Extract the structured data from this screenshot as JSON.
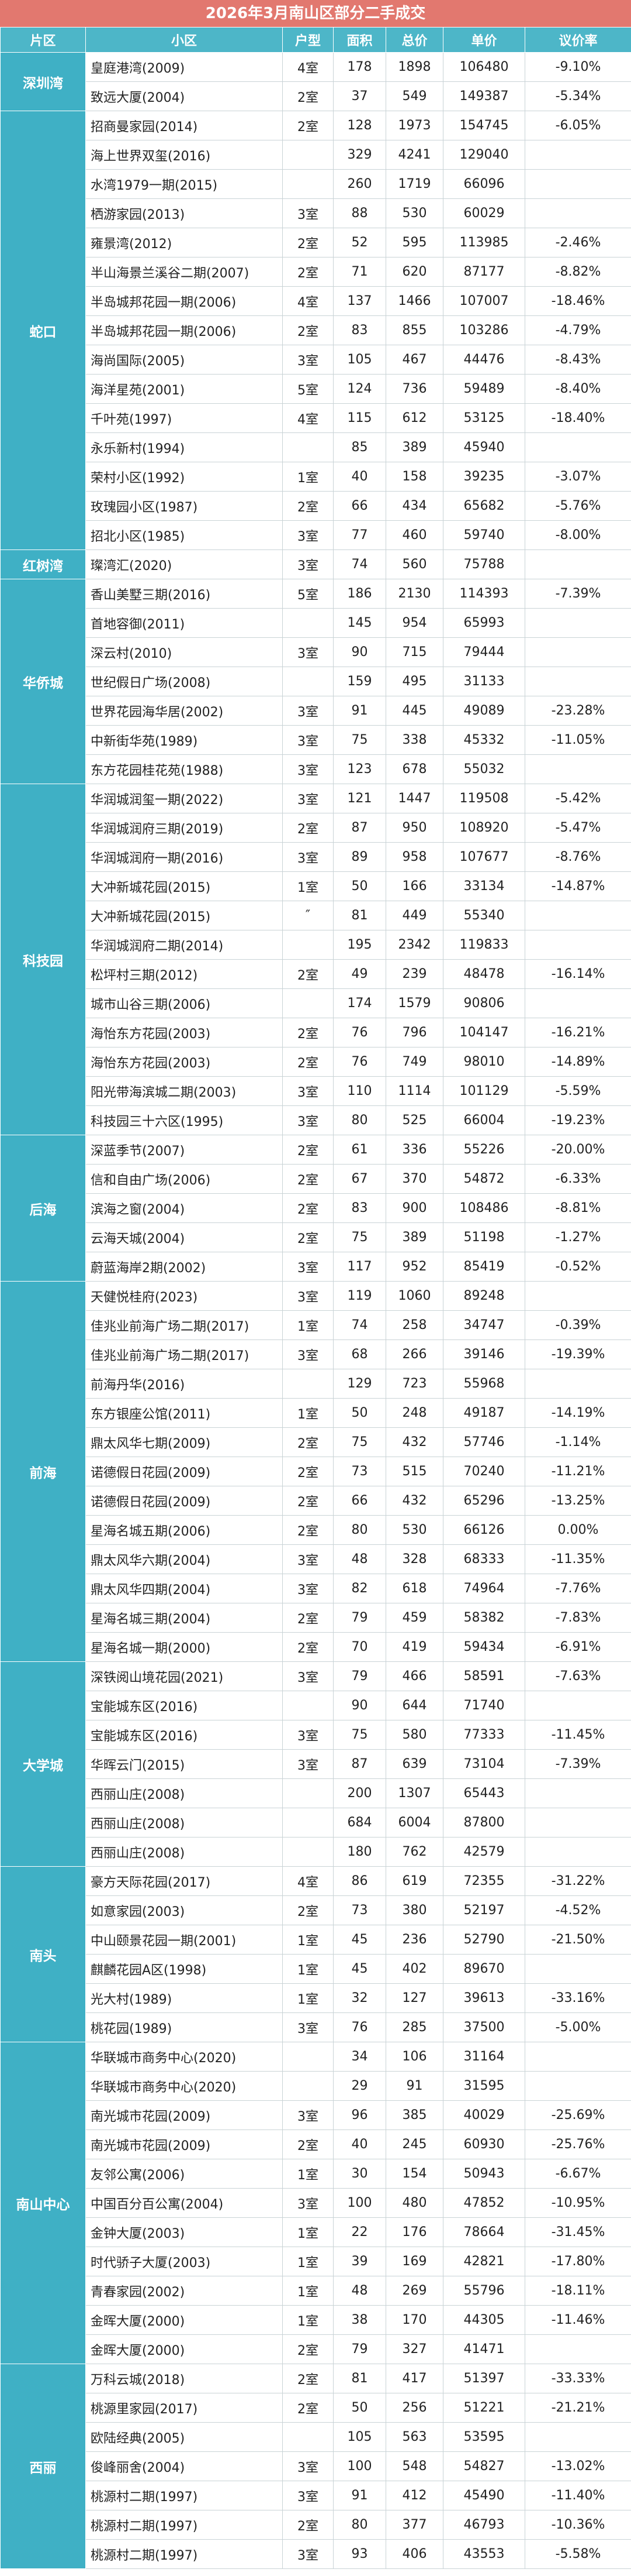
{
  "title": "2026年3月南山区部分二手成交",
  "header": [
    "片区",
    "小区",
    "户型",
    "面积",
    "总价",
    "单价",
    "议价率"
  ],
  "groups": [
    {
      "district": "深圳湾",
      "rows": [
        [
          "皇庭港湾(2009)",
          "4室",
          178,
          1898,
          106480,
          "-9.10%"
        ],
        [
          "致远大厦(2004)",
          "2室",
          37,
          549,
          149387,
          "-5.34%"
        ]
      ]
    },
    {
      "district": "蛇口",
      "rows": [
        [
          "招商曼家园(2014)",
          "2室",
          128,
          1973,
          154745,
          "-6.05%"
        ],
        [
          "海上世界双玺(2016)",
          null,
          329,
          4241,
          129040,
          null
        ],
        [
          "水湾1979一期(2015)",
          null,
          260,
          1719,
          66096,
          null
        ],
        [
          "栖游家园(2013)",
          "3室",
          88,
          530,
          60029,
          null
        ],
        [
          "雍景湾(2012)",
          "2室",
          52,
          595,
          113985,
          "-2.46%"
        ],
        [
          "半山海景兰溪谷二期(2007)",
          "2室",
          71,
          620,
          87177,
          "-8.82%"
        ],
        [
          "半岛城邦花园一期(2006)",
          "4室",
          137,
          1466,
          107007,
          "-18.46%"
        ],
        [
          "半岛城邦花园一期(2006)",
          "2室",
          83,
          855,
          103286,
          "-4.79%"
        ],
        [
          "海尚国际(2005)",
          "3室",
          105,
          467,
          44476,
          "-8.43%"
        ],
        [
          "海洋星苑(2001)",
          "5室",
          124,
          736,
          59489,
          "-8.40%"
        ],
        [
          "千叶苑(1997)",
          "4室",
          115,
          612,
          53125,
          "-18.40%"
        ],
        [
          "永乐新村(1994)",
          null,
          85,
          389,
          45940,
          null
        ],
        [
          "荣村小区(1992)",
          "1室",
          40,
          158,
          39235,
          "-3.07%"
        ],
        [
          "玫瑰园小区(1987)",
          "2室",
          66,
          434,
          65682,
          "-5.76%"
        ],
        [
          "招北小区(1985)",
          "3室",
          77,
          460,
          59740,
          "-8.00%"
        ]
      ]
    },
    {
      "district": "红树湾",
      "rows": [
        [
          "璨湾汇(2020)",
          "3室",
          74,
          560,
          75788,
          null
        ]
      ]
    },
    {
      "district": "华侨城",
      "rows": [
        [
          "香山美墅三期(2016)",
          "5室",
          186,
          2130,
          114393,
          "-7.39%"
        ],
        [
          "首地容御(2011)",
          null,
          145,
          954,
          65993,
          null
        ],
        [
          "深云村(2010)",
          "3室",
          90,
          715,
          79444,
          null
        ],
        [
          "世纪假日广场(2008)",
          null,
          159,
          495,
          31133,
          null
        ],
        [
          "世界花园海华居(2002)",
          "3室",
          91,
          445,
          49089,
          "-23.28%"
        ],
        [
          "中新街华苑(1989)",
          "3室",
          75,
          338,
          45332,
          "-11.05%"
        ],
        [
          "东方花园桂花苑(1988)",
          "3室",
          123,
          678,
          55032,
          null
        ]
      ]
    },
    {
      "district": "科技园",
      "rows": [
        [
          "华润城润玺一期(2022)",
          "3室",
          121,
          1447,
          119508,
          "-5.42%"
        ],
        [
          "华润城润府三期(2019)",
          "2室",
          87,
          950,
          108920,
          "-5.47%"
        ],
        [
          "华润城润府一期(2016)",
          "3室",
          89,
          958,
          107677,
          "-8.76%"
        ],
        [
          "大冲新城花园(2015)",
          "1室",
          50,
          166,
          33134,
          "-14.87%"
        ],
        [
          "大冲新城花园(2015)",
          "″",
          81,
          449,
          55340,
          null
        ],
        [
          "华润城润府二期(2014)",
          null,
          195,
          2342,
          119833,
          null
        ],
        [
          "松坪村三期(2012)",
          "2室",
          49,
          239,
          48478,
          "-16.14%"
        ],
        [
          "城市山谷三期(2006)",
          null,
          174,
          1579,
          90806,
          null
        ],
        [
          "海怡东方花园(2003)",
          "2室",
          76,
          796,
          104147,
          "-16.21%"
        ],
        [
          "海怡东方花园(2003)",
          "2室",
          76,
          749,
          98010,
          "-14.89%"
        ],
        [
          "阳光带海滨城二期(2003)",
          "3室",
          110,
          1114,
          101129,
          "-5.59%"
        ],
        [
          "科技园三十六区(1995)",
          "3室",
          80,
          525,
          66004,
          "-19.23%"
        ]
      ]
    },
    {
      "district": "后海",
      "rows": [
        [
          "深蓝季节(2007)",
          "2室",
          61,
          336,
          55226,
          "-20.00%"
        ],
        [
          "信和自由广场(2006)",
          "2室",
          67,
          370,
          54872,
          "-6.33%"
        ],
        [
          "滨海之窗(2004)",
          "2室",
          83,
          900,
          108486,
          "-8.81%"
        ],
        [
          "云海天城(2004)",
          "2室",
          75,
          389,
          51198,
          "-1.27%"
        ],
        [
          "蔚蓝海岸2期(2002)",
          "3室",
          117,
          952,
          85419,
          "-0.52%"
        ]
      ]
    },
    {
      "district": "前海",
      "rows": [
        [
          "天健悦桂府(2023)",
          "3室",
          119,
          1060,
          89248,
          null
        ],
        [
          "佳兆业前海广场二期(2017)",
          "1室",
          74,
          258,
          34747,
          "-0.39%"
        ],
        [
          "佳兆业前海广场二期(2017)",
          "3室",
          68,
          266,
          39146,
          "-19.39%"
        ],
        [
          "前海丹华(2016)",
          null,
          129,
          723,
          55968,
          null
        ],
        [
          "东方银座公馆(2011)",
          "1室",
          50,
          248,
          49187,
          "-14.19%"
        ],
        [
          "鼎太风华七期(2009)",
          "2室",
          75,
          432,
          57746,
          "-1.14%"
        ],
        [
          "诺德假日花园(2009)",
          "2室",
          73,
          515,
          70240,
          "-11.21%"
        ],
        [
          "诺德假日花园(2009)",
          "2室",
          66,
          432,
          65296,
          "-13.25%"
        ],
        [
          "星海名城五期(2006)",
          "2室",
          80,
          530,
          66126,
          "0.00%"
        ],
        [
          "鼎太风华六期(2004)",
          "3室",
          48,
          328,
          68333,
          "-11.35%"
        ],
        [
          "鼎太风华四期(2004)",
          "3室",
          82,
          618,
          74964,
          "-7.76%"
        ],
        [
          "星海名城三期(2004)",
          "2室",
          79,
          459,
          58382,
          "-7.83%"
        ],
        [
          "星海名城一期(2000)",
          "2室",
          70,
          419,
          59434,
          "-6.91%"
        ]
      ]
    },
    {
      "district": "大学城",
      "rows": [
        [
          "深铁阅山境花园(2021)",
          "3室",
          79,
          466,
          58591,
          "-7.63%"
        ],
        [
          "宝能城东区(2016)",
          null,
          90,
          644,
          71740,
          null
        ],
        [
          "宝能城东区(2016)",
          "3室",
          75,
          580,
          77333,
          "-11.45%"
        ],
        [
          "华晖云门(2015)",
          "3室",
          87,
          639,
          73104,
          "-7.39%"
        ],
        [
          "西丽山庄(2008)",
          null,
          200,
          1307,
          65443,
          null
        ],
        [
          "西丽山庄(2008)",
          null,
          684,
          6004,
          87800,
          null
        ],
        [
          "西丽山庄(2008)",
          null,
          180,
          762,
          42579,
          null
        ]
      ]
    },
    {
      "district": "南头",
      "rows": [
        [
          "豪方天际花园(2017)",
          "4室",
          86,
          619,
          72355,
          "-31.22%"
        ],
        [
          "如意家园(2003)",
          "2室",
          73,
          380,
          52197,
          "-4.52%"
        ],
        [
          "中山颐景花园一期(2001)",
          "1室",
          45,
          236,
          52790,
          "-21.50%"
        ],
        [
          "麒麟花园A区(1998)",
          "1室",
          45,
          402,
          89670,
          null
        ],
        [
          "光大村(1989)",
          "1室",
          32,
          127,
          39613,
          "-33.16%"
        ],
        [
          "桃花园(1989)",
          "3室",
          76,
          285,
          37500,
          "-5.00%"
        ]
      ]
    },
    {
      "district": "南山中心",
      "rows": [
        [
          "华联城市商务中心(2020)",
          null,
          34,
          106,
          31164,
          null
        ],
        [
          "华联城市商务中心(2020)",
          null,
          29,
          91,
          31595,
          null
        ],
        [
          "南光城市花园(2009)",
          "3室",
          96,
          385,
          40029,
          "-25.69%"
        ],
        [
          "南光城市花园(2009)",
          "2室",
          40,
          245,
          60930,
          "-25.76%"
        ],
        [
          "友邻公寓(2006)",
          "1室",
          30,
          154,
          50943,
          "-6.67%"
        ],
        [
          "中国百分百公寓(2004)",
          "3室",
          100,
          480,
          47852,
          "-10.95%"
        ],
        [
          "金钟大厦(2003)",
          "1室",
          22,
          176,
          78664,
          "-31.45%"
        ],
        [
          "时代骄子大厦(2003)",
          "1室",
          39,
          169,
          42821,
          "-17.80%"
        ],
        [
          "青春家园(2002)",
          "1室",
          48,
          269,
          55796,
          "-18.11%"
        ],
        [
          "金晖大厦(2000)",
          "1室",
          38,
          170,
          44305,
          "-11.46%"
        ],
        [
          "金晖大厦(2000)",
          "2室",
          79,
          327,
          41471,
          null
        ]
      ]
    },
    {
      "district": "西丽",
      "rows": [
        [
          "万科云城(2018)",
          "2室",
          81,
          417,
          51397,
          "-33.33%"
        ],
        [
          "桃源里家园(2017)",
          "2室",
          50,
          256,
          51221,
          "-21.21%"
        ],
        [
          "欧陆经典(2005)",
          null,
          105,
          563,
          53595,
          null
        ],
        [
          "俊峰丽舍(2004)",
          "3室",
          100,
          548,
          54827,
          "-13.02%"
        ],
        [
          "桃源村二期(1997)",
          "3室",
          91,
          412,
          45490,
          "-11.40%"
        ],
        [
          "桃源村二期(1997)",
          "2室",
          80,
          377,
          46793,
          "-10.36%"
        ],
        [
          "桃源村二期(1997)",
          "3室",
          93,
          406,
          43553,
          "-5.58%"
        ]
      ]
    }
  ]
}
